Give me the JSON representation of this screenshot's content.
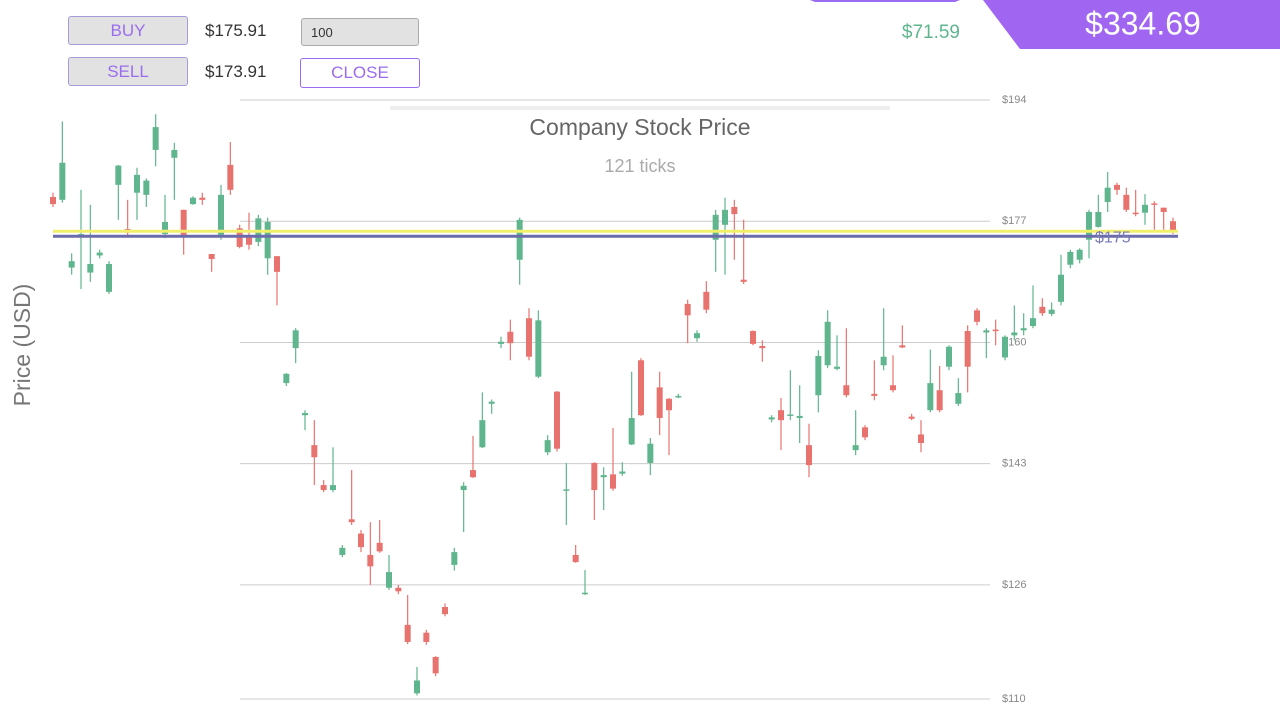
{
  "ui": {
    "buy_button": "BUY",
    "buy_price": "$175.91",
    "sell_button": "SELL",
    "sell_price": "$173.91",
    "quantity": "100",
    "close_button": "CLOSE",
    "balance": "$71.59",
    "total": "$334.69"
  },
  "chart_data": {
    "type": "candlestick",
    "title": "Company Stock Price",
    "subtitle": "121 ticks",
    "y_label": "Price (USD)",
    "up_color": "#5fb58d",
    "down_color": "#e8736e",
    "ylim": [
      110,
      194
    ],
    "yticks": [
      {
        "value": 110,
        "label": "$110"
      },
      {
        "value": 126,
        "label": "$126"
      },
      {
        "value": 143,
        "label": "$143"
      },
      {
        "value": 160,
        "label": "$160"
      },
      {
        "value": 177,
        "label": "$177"
      },
      {
        "value": 194,
        "label": "$194"
      }
    ],
    "grid": true,
    "reference_lines": [
      {
        "value": 175.6,
        "color": "#f2f06a"
      },
      {
        "value": 174.9,
        "label": "$175",
        "color": "#6c6caa"
      }
    ],
    "open": [
      180.4,
      180,
      170.5,
      175,
      169.8,
      172.2,
      167.1,
      182.1,
      175.9,
      181,
      180.7,
      187,
      175.2,
      185.9,
      178.6,
      179.4,
      180.3,
      172.4,
      175.1,
      184.9,
      176,
      174.9,
      174.1,
      171.8,
      172.1,
      154.3,
      159.2,
      149.8,
      145.6,
      140,
      139.3,
      130.2,
      135.2,
      133.2,
      130.2,
      131.9,
      125.6,
      125.6,
      120.4,
      110.8,
      119.3,
      115.9,
      122.9,
      128.8,
      139.3,
      142.1,
      145.3,
      151.4,
      159.8,
      161.5,
      171.6,
      163.4,
      155.2,
      144.6,
      153.1,
      139.2,
      130.2,
      124.7,
      143.1,
      141.1,
      141.5,
      141.6,
      145.7,
      157.5,
      143.1,
      153.7,
      152.1,
      152.3,
      165.4,
      160.6,
      167.1,
      174.4,
      176.5,
      179,
      168.8,
      161.6,
      159.5,
      149.2,
      150.5,
      149.7,
      149.4,
      145.6,
      152.6,
      156.8,
      156.3,
      154,
      144.9,
      148.1,
      152.8,
      156.8,
      154,
      159.6,
      149.6,
      147.1,
      150.5,
      153.3,
      156.6,
      151.4,
      161.6,
      164.5,
      161.4,
      161.8,
      157.9,
      161,
      161.7,
      162.3,
      165,
      164,
      165.7,
      170.9,
      171.6,
      174.4,
      176.2,
      179.7,
      182.1,
      180.7,
      178.2,
      178.2,
      179.5,
      178.9,
      177
    ],
    "high": [
      181,
      191,
      172.5,
      181.4,
      179.3,
      173,
      171.4,
      184.9,
      180,
      184.5,
      183,
      192,
      180.7,
      188,
      178.6,
      180.5,
      181,
      172.4,
      182.1,
      188.1,
      176.5,
      178.2,
      177.9,
      177.5,
      172.1,
      155.7,
      162,
      150.5,
      149.1,
      140.7,
      145.3,
      131.6,
      142.1,
      133.7,
      134.8,
      135.1,
      130.2,
      126,
      124.6,
      114.5,
      119.7,
      116,
      123.4,
      131.2,
      140.4,
      146.9,
      153,
      152,
      160.8,
      163.2,
      177.5,
      164.8,
      164.5,
      147,
      153.2,
      143.1,
      131.6,
      128.1,
      143.2,
      142.5,
      148,
      143.2,
      155.9,
      157.8,
      146.6,
      155.9,
      152.2,
      152.8,
      166,
      161.7,
      168.6,
      178.6,
      180.3,
      180,
      177.2,
      161.7,
      160.3,
      149.8,
      152.2,
      156.1,
      154,
      148.6,
      158.9,
      164.5,
      161,
      162,
      150.5,
      148.4,
      157.5,
      164.8,
      158.2,
      162.4,
      150,
      149.1,
      159,
      156.7,
      159.6,
      155,
      162.4,
      164.8,
      162,
      163.2,
      161,
      165.2,
      164.1,
      168,
      166.2,
      165.6,
      172.3,
      173,
      173.2,
      178.6,
      180.7,
      183.9,
      182.4,
      181.7,
      181.4,
      180.8,
      179.8,
      178.9,
      177.5
    ],
    "low": [
      179,
      179.6,
      169.5,
      167.5,
      168.5,
      171.8,
      166.8,
      177.2,
      174.8,
      177.2,
      179,
      184.7,
      174.6,
      180,
      172.3,
      179.3,
      179.3,
      169.9,
      174.4,
      180.7,
      173.2,
      173,
      173.5,
      169.5,
      165.2,
      153.9,
      157.1,
      147.7,
      140,
      139,
      139,
      129.9,
      134.4,
      130.6,
      126,
      130.5,
      125.3,
      124.7,
      117.7,
      110.5,
      117.6,
      113.2,
      121.6,
      128,
      133.4,
      141,
      145.2,
      150,
      159.2,
      157.5,
      168.1,
      157.5,
      155,
      144.2,
      144.7,
      134.4,
      129.1,
      124.6,
      135.1,
      136.5,
      139.2,
      141.3,
      145.6,
      149.7,
      141.4,
      147,
      144.2,
      152.2,
      159.9,
      160.1,
      164.1,
      169.9,
      169.5,
      171.6,
      168.2,
      159.6,
      157.3,
      148.8,
      144.9,
      149.1,
      145.9,
      141.1,
      150.2,
      156.4,
      156.1,
      152.3,
      144.2,
      146.3,
      151.9,
      156.1,
      153,
      159.2,
      149.1,
      144.6,
      150.2,
      150.2,
      156.1,
      151.1,
      153,
      162.4,
      157.8,
      159.6,
      157.5,
      160.3,
      161,
      162,
      163.7,
      163.7,
      165.2,
      170.4,
      171.1,
      171.8,
      176.1,
      178.3,
      180.7,
      178.3,
      177.7,
      176.5,
      175.8,
      175.8,
      175.2
    ],
    "close": [
      179.4,
      185.2,
      171.4,
      175.2,
      171,
      172.6,
      171,
      184.8,
      175.4,
      183.5,
      182.7,
      190.2,
      176.9,
      187,
      175.1,
      180.3,
      180,
      171.7,
      180.7,
      181.4,
      173.4,
      173.7,
      177.4,
      176.9,
      169.9,
      155.6,
      161.7,
      150.1,
      143.9,
      139.3,
      140,
      131.2,
      134.8,
      131.3,
      128.6,
      130.7,
      127.8,
      125.1,
      118,
      112.6,
      118,
      113.6,
      121.9,
      130.6,
      139.9,
      141.1,
      149.1,
      151.7,
      160.1,
      159.9,
      177.2,
      158,
      163.1,
      146.3,
      145.1,
      139.4,
      129.2,
      124.9,
      139.3,
      141.4,
      139.5,
      141.9,
      149.4,
      149.8,
      145.8,
      149.4,
      150.5,
      152.5,
      163.8,
      161.3,
      164.6,
      177.9,
      178.6,
      178,
      168.5,
      159.8,
      159.2,
      149.5,
      149.1,
      149.9,
      149.7,
      142.8,
      158.1,
      162.9,
      156.6,
      152.6,
      145.6,
      146.7,
      152.5,
      158,
      153.3,
      159.3,
      149.3,
      145.9,
      154.3,
      150.5,
      159.4,
      152.9,
      156.6,
      162.9,
      161.7,
      161.6,
      160.8,
      161.4,
      162,
      163.4,
      164.1,
      164.6,
      169.5,
      172.7,
      173,
      178.3,
      178.3,
      181.7,
      181.4,
      178.6,
      178,
      179.3,
      179.3,
      178.3,
      175.5
    ]
  }
}
